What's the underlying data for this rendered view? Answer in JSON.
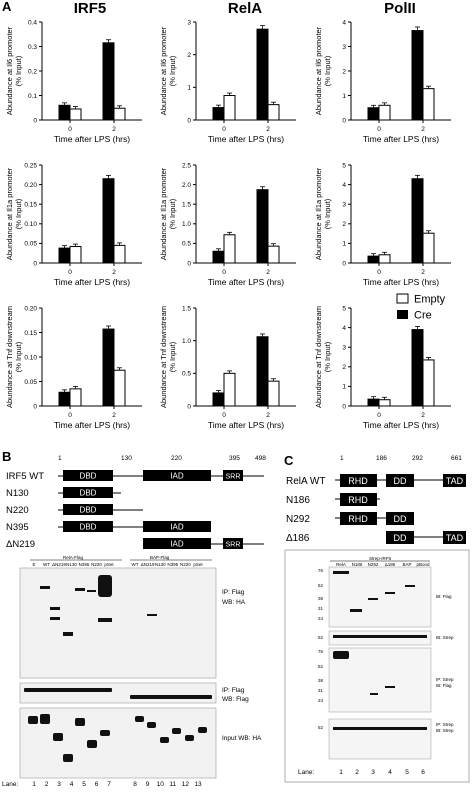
{
  "panel_a": {
    "letter": "A",
    "columns": [
      "IRF5",
      "RelA",
      "PolII"
    ],
    "legend": {
      "empty": "Empty",
      "cre": "Cre"
    },
    "xlabel": "Time after LPS (hrs)",
    "categories": [
      "0",
      "2"
    ]
  },
  "panel_b": {
    "letter": "B",
    "domain_positions": [
      "1",
      "130",
      "220",
      "395",
      "498"
    ],
    "constructs": [
      "IRF5 WT",
      "N130",
      "N220",
      "N395",
      "ΔN219"
    ],
    "domains": {
      "dbd": "DBD",
      "iad": "IAD",
      "srr": "SRR"
    },
    "group_labels": [
      "RelA-Flag",
      "BAP-Flag"
    ],
    "lane_headers": [
      "E",
      "WT",
      "ΔN219",
      "N130",
      "N395",
      "N220",
      "pSet",
      "WT",
      "ΔN219",
      "N130",
      "N395",
      "N220",
      "pSet"
    ],
    "blot_labels": [
      "IP: Flag",
      "WB: HA",
      "IP:  Flag",
      "WB: Flag",
      "Input WB: HA"
    ],
    "lane_label": "Lane:",
    "lanes": [
      "1",
      "2",
      "3",
      "4",
      "5",
      "6",
      "7",
      "8",
      "9",
      "10",
      "11",
      "12",
      "13"
    ]
  },
  "panel_c": {
    "letter": "C",
    "domain_positions": [
      "1",
      "186",
      "292",
      "661"
    ],
    "constructs": [
      "RelA WT",
      "N186",
      "N292",
      "Δ186"
    ],
    "domains": {
      "rhd": "RHD",
      "dd": "DD",
      "tad": "TAD"
    },
    "group_label": "Strep-IRF5",
    "lane_headers": [
      "RelA",
      "N186",
      "N292",
      "Δ186",
      "BAP",
      "pBond"
    ],
    "markers_1": [
      "76",
      "52",
      "38",
      "31",
      "24"
    ],
    "markers_2": [
      "52"
    ],
    "markers_3": [
      "76",
      "52",
      "38",
      "31",
      "24"
    ],
    "markers_4": [
      "52"
    ],
    "blot_labels": [
      "IB: Flag",
      "IB: Strep",
      "IP: Strep",
      "IB: Flag",
      "IP: Strep",
      "IB: Strep"
    ],
    "lane_label": "Lane:",
    "lanes": [
      "1",
      "2",
      "3",
      "4",
      "5",
      "6"
    ]
  },
  "chart_data": [
    {
      "type": "bar",
      "title": "IRF5",
      "ylabel": "Abundance at Il6 promoter (% Input)",
      "xlabel": "Time after LPS (hrs)",
      "categories": [
        "0",
        "2"
      ],
      "ylim": [
        0,
        0.4
      ],
      "ticks": [
        "0",
        "0.1",
        "0.2",
        "0.3",
        "0.4"
      ],
      "series": [
        {
          "name": "Cre",
          "values": [
            0.06,
            0.315
          ]
        },
        {
          "name": "Empty",
          "values": [
            0.045,
            0.048
          ]
        }
      ]
    },
    {
      "type": "bar",
      "title": "RelA",
      "ylabel": "Abundance at Il6 promoter (% Input)",
      "xlabel": "Time after LPS (hrs)",
      "categories": [
        "0",
        "2"
      ],
      "ylim": [
        0,
        3
      ],
      "ticks": [
        "0",
        "1",
        "2",
        "3"
      ],
      "series": [
        {
          "name": "Cre",
          "values": [
            0.38,
            2.78
          ]
        },
        {
          "name": "Empty",
          "values": [
            0.75,
            0.47
          ]
        }
      ]
    },
    {
      "type": "bar",
      "title": "PolII",
      "ylabel": "Abundance at Il6 promoter (% Input)",
      "xlabel": "Time after LPS (hrs)",
      "categories": [
        "0",
        "2"
      ],
      "ylim": [
        0,
        4
      ],
      "ticks": [
        "0",
        "1",
        "2",
        "3",
        "4"
      ],
      "series": [
        {
          "name": "Cre",
          "values": [
            0.5,
            3.65
          ]
        },
        {
          "name": "Empty",
          "values": [
            0.6,
            1.28
          ]
        }
      ]
    },
    {
      "type": "bar",
      "ylabel": "Abundance at Il1a promoter (% Input)",
      "xlabel": "Time after LPS (hrs)",
      "categories": [
        "0",
        "2"
      ],
      "ylim": [
        0,
        0.25
      ],
      "ticks": [
        "0",
        "0.05",
        "0.10",
        "0.15",
        "0.20",
        "0.25"
      ],
      "series": [
        {
          "name": "Cre",
          "values": [
            0.038,
            0.215
          ]
        },
        {
          "name": "Empty",
          "values": [
            0.042,
            0.045
          ]
        }
      ]
    },
    {
      "type": "bar",
      "ylabel": "Abundance at Il1a promoter (% Input)",
      "xlabel": "Time after LPS (hrs)",
      "categories": [
        "0",
        "2"
      ],
      "ylim": [
        0,
        2.5
      ],
      "ticks": [
        "0",
        "0.5",
        "1.0",
        "1.5",
        "2.0",
        "2.5"
      ],
      "series": [
        {
          "name": "Cre",
          "values": [
            0.3,
            1.87
          ]
        },
        {
          "name": "Empty",
          "values": [
            0.72,
            0.43
          ]
        }
      ]
    },
    {
      "type": "bar",
      "ylabel": "Abundance at Il1a promoter (% Input)",
      "xlabel": "Time after LPS (hrs)",
      "categories": [
        "0",
        "2"
      ],
      "ylim": [
        0,
        5
      ],
      "ticks": [
        "0",
        "1",
        "2",
        "3",
        "4",
        "5"
      ],
      "series": [
        {
          "name": "Cre",
          "values": [
            0.35,
            4.3
          ]
        },
        {
          "name": "Empty",
          "values": [
            0.42,
            1.52
          ]
        }
      ]
    },
    {
      "type": "bar",
      "ylabel": "Abundance at Tnf downstream (% Input)",
      "xlabel": "Time after LPS (hrs)",
      "categories": [
        "0",
        "2"
      ],
      "ylim": [
        0,
        0.2
      ],
      "ticks": [
        "0",
        "0.05",
        "0.10",
        "0.15",
        "0.20"
      ],
      "series": [
        {
          "name": "Cre",
          "values": [
            0.028,
            0.157
          ]
        },
        {
          "name": "Empty",
          "values": [
            0.035,
            0.073
          ]
        }
      ]
    },
    {
      "type": "bar",
      "ylabel": "Abundance at Tnf downstream (% Input)",
      "xlabel": "Time after LPS (hrs)",
      "categories": [
        "0",
        "2"
      ],
      "ylim": [
        0,
        1.5
      ],
      "ticks": [
        "0",
        "0.5",
        "1.0",
        "1.5"
      ],
      "series": [
        {
          "name": "Cre",
          "values": [
            0.2,
            1.06
          ]
        },
        {
          "name": "Empty",
          "values": [
            0.5,
            0.38
          ]
        }
      ]
    },
    {
      "type": "bar",
      "ylabel": "Abundance at Tnf downstream (% Input)",
      "xlabel": "Time after LPS (hrs)",
      "categories": [
        "0",
        "2"
      ],
      "ylim": [
        0,
        5
      ],
      "ticks": [
        "0",
        "1",
        "2",
        "3",
        "4",
        "5"
      ],
      "series": [
        {
          "name": "Cre",
          "values": [
            0.35,
            3.9
          ]
        },
        {
          "name": "Empty",
          "values": [
            0.32,
            2.35
          ]
        }
      ]
    }
  ]
}
